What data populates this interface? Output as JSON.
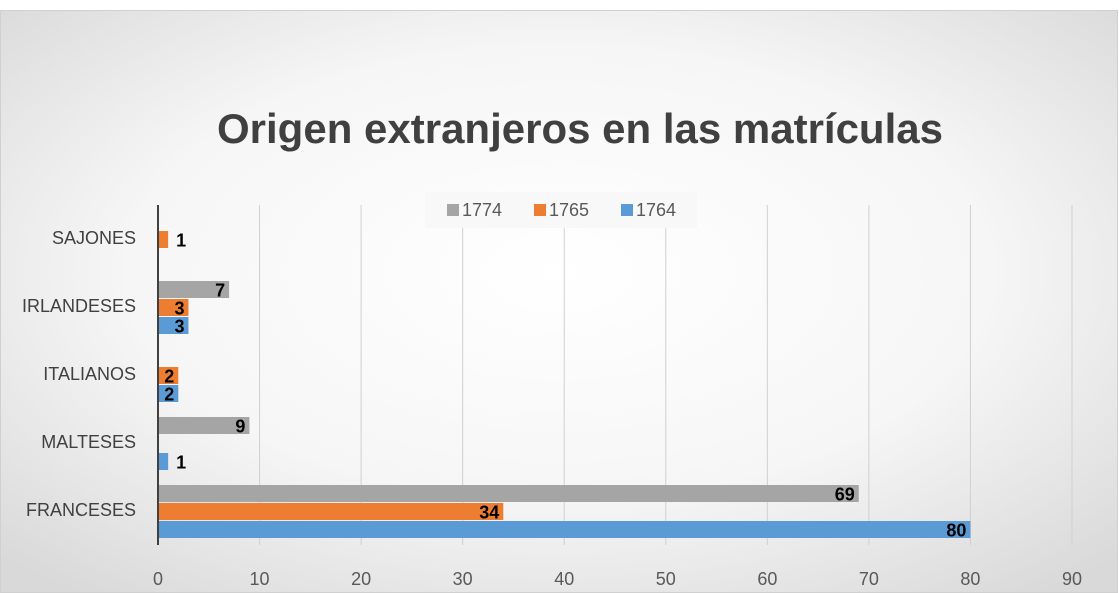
{
  "chart_data": {
    "type": "barh",
    "title": "Origen extranjeros en las matrículas",
    "categories": [
      "FRANCESES",
      "MALTESES",
      "ITALIANOS",
      "IRLANDESES",
      "SAJONES"
    ],
    "series": [
      {
        "name": "1764",
        "color": "#5b9bd5",
        "values": [
          80,
          1,
          2,
          3,
          null
        ]
      },
      {
        "name": "1765",
        "color": "#ed7d31",
        "values": [
          34,
          null,
          2,
          3,
          1
        ]
      },
      {
        "name": "1774",
        "color": "#a5a5a5",
        "values": [
          69,
          9,
          null,
          7,
          null
        ]
      }
    ],
    "xlim": [
      0,
      90
    ],
    "xticks": [
      0,
      10,
      20,
      30,
      40,
      50,
      60,
      70,
      80,
      90
    ],
    "grid": true,
    "legend": "top"
  }
}
